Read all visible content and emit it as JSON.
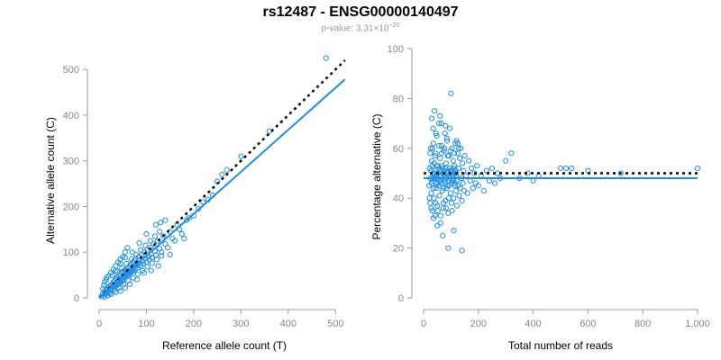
{
  "title": "rs12487 - ENSG00000140497",
  "subtitle": {
    "prefix": "p-value: 3.31×10",
    "exponent": "−20"
  },
  "colors": {
    "points": "#1f8fe6",
    "fit_line": "#1f8fe6",
    "reference_line": "#000000",
    "axis": "#999999"
  },
  "chart_data": [
    {
      "type": "scatter",
      "xlabel": "Reference allele count (T)",
      "ylabel": "Alternative allele count (C)",
      "xlim": [
        0,
        530
      ],
      "ylim": [
        0,
        530
      ],
      "xticks": [
        0,
        100,
        200,
        300,
        400,
        500
      ],
      "yticks": [
        0,
        100,
        200,
        300,
        400,
        500
      ],
      "xtick_labels": [
        "0",
        "100",
        "200",
        "300",
        "400",
        "500"
      ],
      "ytick_labels": [
        "0",
        "100",
        "200",
        "300",
        "400",
        "500"
      ],
      "reference_line": {
        "style": "dotted",
        "slope": 1,
        "intercept": 0
      },
      "fit_line": {
        "style": "solid",
        "slope": 0.92,
        "intercept": 0
      },
      "points": [
        [
          5,
          3
        ],
        [
          8,
          10
        ],
        [
          10,
          6
        ],
        [
          12,
          15
        ],
        [
          14,
          9
        ],
        [
          15,
          18
        ],
        [
          16,
          12
        ],
        [
          18,
          20
        ],
        [
          20,
          14
        ],
        [
          21,
          25
        ],
        [
          22,
          18
        ],
        [
          24,
          22
        ],
        [
          25,
          28
        ],
        [
          26,
          19
        ],
        [
          28,
          30
        ],
        [
          29,
          24
        ],
        [
          30,
          35
        ],
        [
          31,
          27
        ],
        [
          32,
          22
        ],
        [
          33,
          38
        ],
        [
          34,
          30
        ],
        [
          35,
          26
        ],
        [
          36,
          42
        ],
        [
          37,
          33
        ],
        [
          38,
          28
        ],
        [
          39,
          45
        ],
        [
          40,
          36
        ],
        [
          41,
          30
        ],
        [
          42,
          48
        ],
        [
          43,
          38
        ],
        [
          44,
          34
        ],
        [
          45,
          50
        ],
        [
          46,
          40
        ],
        [
          47,
          35
        ],
        [
          48,
          55
        ],
        [
          49,
          44
        ],
        [
          50,
          38
        ],
        [
          51,
          58
        ],
        [
          52,
          47
        ],
        [
          53,
          42
        ],
        [
          54,
          60
        ],
        [
          55,
          50
        ],
        [
          56,
          45
        ],
        [
          57,
          62
        ],
        [
          58,
          52
        ],
        [
          59,
          48
        ],
        [
          60,
          65
        ],
        [
          61,
          55
        ],
        [
          62,
          50
        ],
        [
          63,
          68
        ],
        [
          64,
          58
        ],
        [
          65,
          54
        ],
        [
          66,
          72
        ],
        [
          67,
          60
        ],
        [
          68,
          56
        ],
        [
          69,
          75
        ],
        [
          70,
          62
        ],
        [
          71,
          58
        ],
        [
          72,
          78
        ],
        [
          73,
          66
        ],
        [
          74,
          60
        ],
        [
          75,
          82
        ],
        [
          76,
          70
        ],
        [
          77,
          64
        ],
        [
          78,
          85
        ],
        [
          80,
          72
        ],
        [
          82,
          66
        ],
        [
          84,
          90
        ],
        [
          86,
          76
        ],
        [
          88,
          70
        ],
        [
          90,
          95
        ],
        [
          92,
          80
        ],
        [
          94,
          74
        ],
        [
          96,
          100
        ],
        [
          98,
          86
        ],
        [
          100,
          78
        ],
        [
          102,
          105
        ],
        [
          104,
          90
        ],
        [
          106,
          84
        ],
        [
          108,
          110
        ],
        [
          110,
          96
        ],
        [
          112,
          88
        ],
        [
          115,
          118
        ],
        [
          118,
          102
        ],
        [
          120,
          94
        ],
        [
          124,
          125
        ],
        [
          128,
          108
        ],
        [
          132,
          100
        ],
        [
          136,
          135
        ],
        [
          140,
          118
        ],
        [
          145,
          110
        ],
        [
          150,
          145
        ],
        [
          155,
          130
        ],
        [
          160,
          125
        ],
        [
          165,
          160
        ],
        [
          170,
          150
        ],
        [
          175,
          140
        ],
        [
          180,
          130
        ],
        [
          185,
          170
        ],
        [
          190,
          175
        ],
        [
          200,
          180
        ],
        [
          210,
          195
        ],
        [
          220,
          210
        ],
        [
          230,
          215
        ],
        [
          240,
          225
        ],
        [
          250,
          255
        ],
        [
          260,
          270
        ],
        [
          270,
          280
        ],
        [
          300,
          310
        ],
        [
          360,
          365
        ],
        [
          480,
          525
        ],
        [
          15,
          40
        ],
        [
          20,
          48
        ],
        [
          25,
          55
        ],
        [
          30,
          62
        ],
        [
          35,
          70
        ],
        [
          40,
          78
        ],
        [
          45,
          85
        ],
        [
          50,
          90
        ],
        [
          55,
          100
        ],
        [
          60,
          110
        ],
        [
          18,
          5
        ],
        [
          25,
          8
        ],
        [
          35,
          12
        ],
        [
          45,
          15
        ],
        [
          55,
          22
        ],
        [
          65,
          30
        ],
        [
          80,
          40
        ],
        [
          95,
          55
        ],
        [
          110,
          60
        ],
        [
          125,
          70
        ],
        [
          150,
          95
        ],
        [
          35,
          60
        ],
        [
          45,
          75
        ],
        [
          55,
          88
        ],
        [
          70,
          100
        ],
        [
          85,
          120
        ],
        [
          100,
          140
        ],
        [
          120,
          160
        ],
        [
          130,
          165
        ],
        [
          140,
          170
        ],
        [
          8,
          20
        ],
        [
          10,
          28
        ],
        [
          12,
          35
        ],
        [
          16,
          45
        ],
        [
          28,
          50
        ],
        [
          38,
          58
        ],
        [
          48,
          65
        ],
        [
          58,
          75
        ],
        [
          68,
          85
        ],
        [
          78,
          95
        ],
        [
          88,
          105
        ],
        [
          98,
          115
        ],
        [
          108,
          125
        ],
        [
          118,
          135
        ],
        [
          128,
          145
        ],
        [
          12,
          2
        ],
        [
          22,
          10
        ],
        [
          32,
          16
        ],
        [
          42,
          22
        ],
        [
          52,
          30
        ],
        [
          62,
          38
        ],
        [
          72,
          44
        ],
        [
          82,
          52
        ],
        [
          92,
          60
        ],
        [
          102,
          68
        ],
        [
          112,
          76
        ],
        [
          122,
          84
        ],
        [
          132,
          92
        ]
      ]
    },
    {
      "type": "scatter",
      "xlabel": "Total number of reads",
      "ylabel": "Percentage alternative (C)",
      "xlim": [
        0,
        1000
      ],
      "ylim": [
        0,
        100
      ],
      "xticks": [
        0,
        200,
        400,
        600,
        800,
        1000
      ],
      "yticks": [
        0,
        20,
        40,
        60,
        80,
        100
      ],
      "xtick_labels": [
        "0",
        "200",
        "400",
        "600",
        "800",
        "1,000"
      ],
      "ytick_labels": [
        "0",
        "20",
        "40",
        "60",
        "80",
        "100"
      ],
      "reference_line": {
        "style": "dotted",
        "y": 50
      },
      "fit_line": {
        "style": "solid",
        "y": 48
      },
      "points": [
        [
          20,
          45
        ],
        [
          22,
          52
        ],
        [
          24,
          38
        ],
        [
          26,
          60
        ],
        [
          28,
          42
        ],
        [
          30,
          55
        ],
        [
          32,
          35
        ],
        [
          34,
          48
        ],
        [
          36,
          62
        ],
        [
          38,
          40
        ],
        [
          40,
          50
        ],
        [
          42,
          33
        ],
        [
          44,
          58
        ],
        [
          46,
          44
        ],
        [
          48,
          65
        ],
        [
          50,
          37
        ],
        [
          52,
          53
        ],
        [
          54,
          46
        ],
        [
          56,
          70
        ],
        [
          58,
          41
        ],
        [
          60,
          56
        ],
        [
          62,
          30
        ],
        [
          64,
          49
        ],
        [
          66,
          61
        ],
        [
          68,
          43
        ],
        [
          70,
          52
        ],
        [
          72,
          36
        ],
        [
          74,
          59
        ],
        [
          76,
          47
        ],
        [
          78,
          66
        ],
        [
          80,
          39
        ],
        [
          82,
          54
        ],
        [
          84,
          44
        ],
        [
          86,
          63
        ],
        [
          88,
          50
        ],
        [
          90,
          34
        ],
        [
          92,
          57
        ],
        [
          94,
          45
        ],
        [
          96,
          68
        ],
        [
          98,
          42
        ],
        [
          100,
          51
        ],
        [
          102,
          38
        ],
        [
          104,
          60
        ],
        [
          106,
          47
        ],
        [
          108,
          55
        ],
        [
          110,
          40
        ],
        [
          112,
          53
        ],
        [
          114,
          46
        ],
        [
          116,
          62
        ],
        [
          118,
          43
        ],
        [
          120,
          50
        ],
        [
          122,
          37
        ],
        [
          124,
          58
        ],
        [
          126,
          45
        ],
        [
          128,
          52
        ],
        [
          130,
          41
        ],
        [
          132,
          56
        ],
        [
          134,
          44
        ],
        [
          136,
          60
        ],
        [
          138,
          48
        ],
        [
          140,
          39
        ],
        [
          142,
          54
        ],
        [
          144,
          46
        ],
        [
          146,
          51
        ],
        [
          148,
          43
        ],
        [
          150,
          57
        ],
        [
          155,
          49
        ],
        [
          160,
          42
        ],
        [
          165,
          55
        ],
        [
          170,
          47
        ],
        [
          175,
          52
        ],
        [
          180,
          44
        ],
        [
          185,
          50
        ],
        [
          190,
          46
        ],
        [
          195,
          53
        ],
        [
          200,
          45
        ],
        [
          210,
          49
        ],
        [
          220,
          43
        ],
        [
          230,
          51
        ],
        [
          240,
          47
        ],
        [
          250,
          52
        ],
        [
          260,
          46
        ],
        [
          270,
          50
        ],
        [
          280,
          48
        ],
        [
          300,
          55
        ],
        [
          320,
          58
        ],
        [
          350,
          48
        ],
        [
          380,
          50
        ],
        [
          400,
          47
        ],
        [
          420,
          49
        ],
        [
          500,
          52
        ],
        [
          520,
          52
        ],
        [
          540,
          52
        ],
        [
          600,
          51
        ],
        [
          720,
          50
        ],
        [
          1000,
          52
        ],
        [
          30,
          72
        ],
        [
          40,
          75
        ],
        [
          60,
          73
        ],
        [
          80,
          69
        ],
        [
          100,
          82
        ],
        [
          120,
          63
        ],
        [
          50,
          29
        ],
        [
          90,
          20
        ],
        [
          140,
          19
        ],
        [
          70,
          25
        ],
        [
          110,
          27
        ],
        [
          35,
          68
        ],
        [
          45,
          66
        ],
        [
          65,
          70
        ],
        [
          85,
          64
        ],
        [
          125,
          62
        ],
        [
          25,
          48
        ],
        [
          27,
          51
        ],
        [
          29,
          46
        ],
        [
          31,
          53
        ],
        [
          33,
          47
        ],
        [
          35,
          50
        ],
        [
          37,
          44
        ],
        [
          39,
          54
        ],
        [
          41,
          48
        ],
        [
          43,
          51
        ],
        [
          45,
          49
        ],
        [
          47,
          46
        ],
        [
          49,
          53
        ],
        [
          51,
          48
        ],
        [
          53,
          50
        ],
        [
          55,
          45
        ],
        [
          57,
          52
        ],
        [
          59,
          47
        ],
        [
          61,
          51
        ],
        [
          63,
          49
        ],
        [
          65,
          46
        ],
        [
          67,
          53
        ],
        [
          69,
          48
        ],
        [
          71,
          50
        ],
        [
          73,
          44
        ],
        [
          75,
          51
        ],
        [
          77,
          49
        ],
        [
          79,
          46
        ],
        [
          81,
          52
        ],
        [
          83,
          48
        ],
        [
          85,
          50
        ],
        [
          87,
          45
        ],
        [
          89,
          51
        ],
        [
          91,
          49
        ],
        [
          93,
          47
        ],
        [
          95,
          52
        ],
        [
          97,
          48
        ],
        [
          99,
          50
        ],
        [
          101,
          46
        ],
        [
          103,
          51
        ],
        [
          105,
          49
        ],
        [
          107,
          47
        ],
        [
          109,
          52
        ],
        [
          111,
          48
        ],
        [
          113,
          50
        ],
        [
          115,
          45
        ],
        [
          117,
          51
        ],
        [
          119,
          49
        ],
        [
          121,
          47
        ],
        [
          22,
          40
        ],
        [
          28,
          36
        ],
        [
          36,
          32
        ],
        [
          44,
          38
        ],
        [
          52,
          35
        ],
        [
          62,
          33
        ],
        [
          72,
          38
        ],
        [
          82,
          36
        ],
        [
          92,
          40
        ],
        [
          104,
          35
        ],
        [
          24,
          58
        ],
        [
          32,
          60
        ],
        [
          42,
          57
        ],
        [
          56,
          61
        ],
        [
          66,
          58
        ],
        [
          76,
          60
        ],
        [
          88,
          57
        ],
        [
          98,
          59
        ],
        [
          112,
          58
        ],
        [
          128,
          60
        ]
      ]
    }
  ]
}
